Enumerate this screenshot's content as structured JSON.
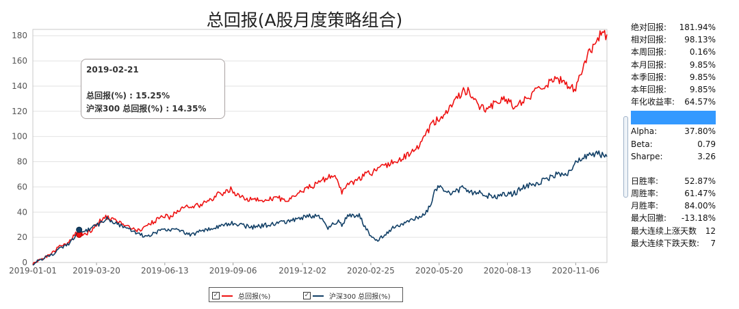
{
  "chart_data": {
    "type": "line",
    "title": "总回报(A股月度策略组合)",
    "xlabel": "",
    "ylabel": "",
    "ylim": [
      0,
      185
    ],
    "yticks": [
      0,
      20,
      40,
      60,
      80,
      100,
      120,
      140,
      160,
      180
    ],
    "xticks": [
      "2019-01-01",
      "2019-03-20",
      "2019-06-13",
      "2019-09-06",
      "2019-12-02",
      "2020-02-25",
      "2020-05-20",
      "2020-08-13",
      "2020-11-06"
    ],
    "xtick_positions": [
      0,
      55,
      114,
      173,
      233,
      292,
      351,
      410,
      469
    ],
    "grid": true,
    "series": [
      {
        "name": "总回报(%)",
        "color": "#ee1111",
        "points": [
          [
            0,
            -1
          ],
          [
            8,
            3
          ],
          [
            15,
            6
          ],
          [
            22,
            12
          ],
          [
            30,
            15
          ],
          [
            36,
            22
          ],
          [
            40,
            26
          ],
          [
            44,
            21
          ],
          [
            48,
            24
          ],
          [
            52,
            27
          ],
          [
            57,
            32
          ],
          [
            63,
            36
          ],
          [
            70,
            34
          ],
          [
            78,
            30
          ],
          [
            85,
            27
          ],
          [
            92,
            25
          ],
          [
            98,
            28
          ],
          [
            103,
            32
          ],
          [
            108,
            34
          ],
          [
            113,
            37
          ],
          [
            118,
            36
          ],
          [
            123,
            39
          ],
          [
            128,
            42
          ],
          [
            133,
            44
          ],
          [
            138,
            45
          ],
          [
            143,
            45
          ],
          [
            148,
            47
          ],
          [
            153,
            50
          ],
          [
            158,
            53
          ],
          [
            163,
            55
          ],
          [
            168,
            57
          ],
          [
            172,
            58
          ],
          [
            177,
            53
          ],
          [
            183,
            51
          ],
          [
            190,
            50
          ],
          [
            197,
            49
          ],
          [
            204,
            50
          ],
          [
            211,
            51
          ],
          [
            218,
            50
          ],
          [
            225,
            52
          ],
          [
            230,
            55
          ],
          [
            235,
            58
          ],
          [
            240,
            60
          ],
          [
            245,
            63
          ],
          [
            250,
            66
          ],
          [
            255,
            67
          ],
          [
            259,
            70
          ],
          [
            263,
            65
          ],
          [
            267,
            56
          ],
          [
            271,
            60
          ],
          [
            276,
            63
          ],
          [
            282,
            66
          ],
          [
            288,
            70
          ],
          [
            294,
            72
          ],
          [
            300,
            75
          ],
          [
            306,
            77
          ],
          [
            312,
            80
          ],
          [
            318,
            82
          ],
          [
            324,
            85
          ],
          [
            330,
            90
          ],
          [
            336,
            95
          ],
          [
            340,
            102
          ],
          [
            344,
            108
          ],
          [
            348,
            112
          ],
          [
            352,
            116
          ],
          [
            357,
            120
          ],
          [
            362,
            125
          ],
          [
            367,
            130
          ],
          [
            372,
            136
          ],
          [
            376,
            137
          ],
          [
            380,
            132
          ],
          [
            384,
            127
          ],
          [
            388,
            122
          ],
          [
            392,
            120
          ],
          [
            397,
            124
          ],
          [
            402,
            128
          ],
          [
            407,
            132
          ],
          [
            412,
            126
          ],
          [
            417,
            124
          ],
          [
            422,
            127
          ],
          [
            427,
            130
          ],
          [
            432,
            133
          ],
          [
            437,
            137
          ],
          [
            442,
            140
          ],
          [
            446,
            143
          ],
          [
            450,
            144
          ],
          [
            454,
            145
          ],
          [
            458,
            146
          ],
          [
            463,
            138
          ],
          [
            468,
            138
          ],
          [
            472,
            145
          ],
          [
            476,
            155
          ],
          [
            480,
            165
          ],
          [
            484,
            172
          ],
          [
            488,
            178
          ],
          [
            492,
            182
          ],
          [
            496,
            181
          ]
        ]
      },
      {
        "name": "沪深300 总回报(%)",
        "color": "#113f66",
        "points": [
          [
            0,
            -1
          ],
          [
            8,
            3
          ],
          [
            15,
            5
          ],
          [
            22,
            10
          ],
          [
            30,
            14
          ],
          [
            36,
            20
          ],
          [
            40,
            24
          ],
          [
            44,
            26
          ],
          [
            48,
            26
          ],
          [
            52,
            28
          ],
          [
            57,
            30
          ],
          [
            63,
            35
          ],
          [
            70,
            32
          ],
          [
            78,
            28
          ],
          [
            85,
            25
          ],
          [
            92,
            22
          ],
          [
            98,
            21
          ],
          [
            103,
            23
          ],
          [
            108,
            24
          ],
          [
            113,
            26
          ],
          [
            118,
            25
          ],
          [
            123,
            27
          ],
          [
            128,
            25
          ],
          [
            133,
            22
          ],
          [
            138,
            22
          ],
          [
            143,
            24
          ],
          [
            148,
            26
          ],
          [
            153,
            27
          ],
          [
            158,
            28
          ],
          [
            163,
            29
          ],
          [
            168,
            30
          ],
          [
            172,
            31
          ],
          [
            177,
            30
          ],
          [
            183,
            29
          ],
          [
            190,
            28
          ],
          [
            197,
            29
          ],
          [
            204,
            30
          ],
          [
            211,
            31
          ],
          [
            218,
            32
          ],
          [
            225,
            34
          ],
          [
            230,
            35
          ],
          [
            235,
            36
          ],
          [
            240,
            37
          ],
          [
            245,
            37
          ],
          [
            250,
            34
          ],
          [
            255,
            27
          ],
          [
            259,
            30
          ],
          [
            263,
            33
          ],
          [
            267,
            30
          ],
          [
            271,
            36
          ],
          [
            276,
            38
          ],
          [
            282,
            37
          ],
          [
            286,
            30
          ],
          [
            290,
            24
          ],
          [
            294,
            20
          ],
          [
            298,
            18
          ],
          [
            302,
            21
          ],
          [
            306,
            24
          ],
          [
            310,
            27
          ],
          [
            316,
            29
          ],
          [
            322,
            31
          ],
          [
            328,
            34
          ],
          [
            334,
            36
          ],
          [
            340,
            40
          ],
          [
            344,
            48
          ],
          [
            348,
            58
          ],
          [
            352,
            60
          ],
          [
            356,
            57
          ],
          [
            360,
            55
          ],
          [
            366,
            57
          ],
          [
            372,
            59
          ],
          [
            376,
            57
          ],
          [
            380,
            55
          ],
          [
            384,
            56
          ],
          [
            388,
            54
          ],
          [
            394,
            53
          ],
          [
            400,
            52
          ],
          [
            406,
            55
          ],
          [
            412,
            54
          ],
          [
            418,
            56
          ],
          [
            424,
            60
          ],
          [
            430,
            62
          ],
          [
            436,
            63
          ],
          [
            442,
            65
          ],
          [
            446,
            67
          ],
          [
            450,
            69
          ],
          [
            455,
            70
          ],
          [
            460,
            70
          ],
          [
            465,
            74
          ],
          [
            470,
            80
          ],
          [
            475,
            84
          ],
          [
            480,
            85
          ],
          [
            484,
            86
          ],
          [
            488,
            87
          ],
          [
            492,
            85
          ],
          [
            496,
            84
          ]
        ]
      }
    ],
    "marker": {
      "x": 40,
      "y": 22
    }
  },
  "tooltip": {
    "date": "2019-02-21",
    "line1": "总回报(%) : 15.25%",
    "line2": "沪深300 总回报(%) : 14.35%"
  },
  "legend": {
    "item1": "总回报(%)",
    "item2": "沪深300 总回报(%)",
    "check": "✓"
  },
  "stats": {
    "group1": [
      {
        "label": "绝对回报:",
        "value": "181.94%"
      },
      {
        "label": "相对回报:",
        "value": "98.13%"
      },
      {
        "label": "本周回报:",
        "value": "0.16%"
      },
      {
        "label": "本月回报:",
        "value": "9.85%"
      },
      {
        "label": "本季回报:",
        "value": "9.85%"
      },
      {
        "label": "本年回报:",
        "value": "9.85%"
      },
      {
        "label": "年化收益率:",
        "value": "64.57%"
      }
    ],
    "group2": [
      {
        "label": "Alpha:",
        "value": "37.80%"
      },
      {
        "label": "Beta:",
        "value": "0.79"
      },
      {
        "label": "Sharpe:",
        "value": "3.26"
      }
    ],
    "group3": [
      {
        "label": "日胜率:",
        "value": "52.87%"
      },
      {
        "label": "周胜率:",
        "value": "61.47%"
      },
      {
        "label": "月胜率:",
        "value": "84.00%"
      },
      {
        "label": "最大回撤:",
        "value": "-13.18%"
      },
      {
        "label": "最大连续上涨天数",
        "value": "12"
      },
      {
        "label": "最大连续下跌天数:",
        "value": "7"
      }
    ]
  }
}
